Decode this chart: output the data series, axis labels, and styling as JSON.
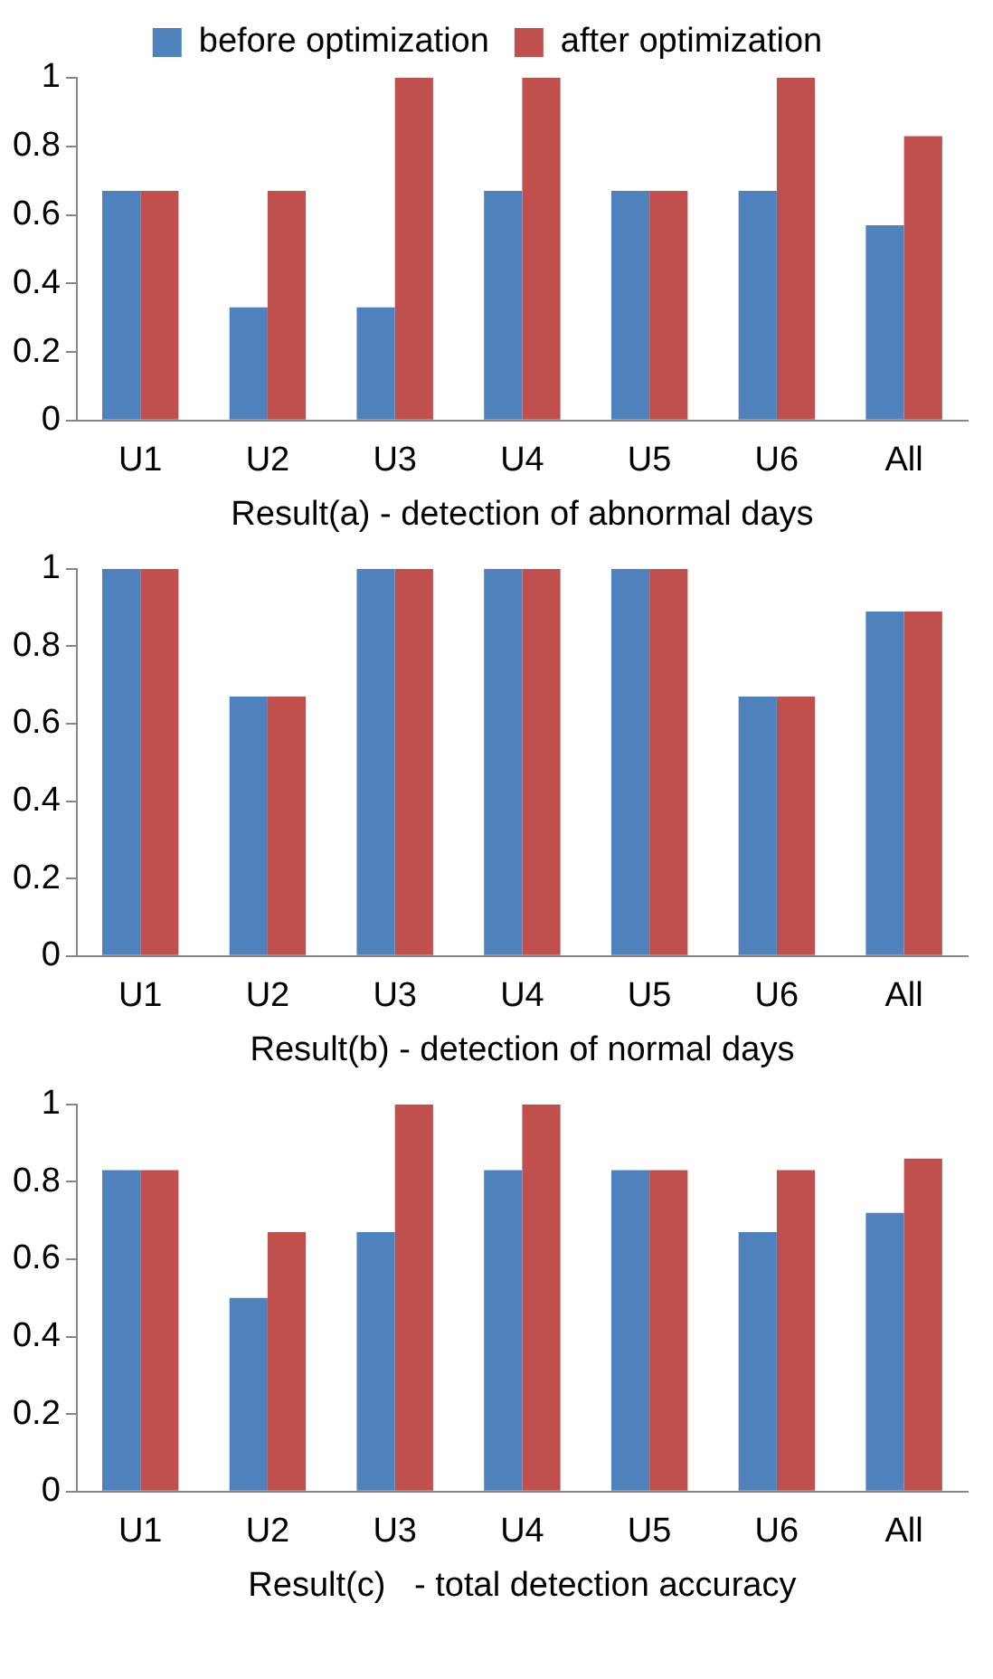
{
  "chart_data": [
    {
      "type": "bar",
      "xlabel": "Result(a) - detection of abnormal days",
      "categories": [
        "U1",
        "U2",
        "U3",
        "U4",
        "U5",
        "U6",
        "All"
      ],
      "series": [
        {
          "name": "before optimization",
          "color": "#4f81bd",
          "values": [
            0.67,
            0.33,
            0.33,
            0.67,
            0.67,
            0.67,
            0.57
          ]
        },
        {
          "name": "after optimization",
          "color": "#c0504d",
          "values": [
            0.67,
            0.67,
            1,
            1,
            0.67,
            1,
            0.83
          ]
        }
      ],
      "ylim": [
        0,
        1
      ],
      "yticks": [
        0,
        0.2,
        0.4,
        0.6,
        0.8,
        1
      ],
      "grid": false,
      "legend": "top"
    },
    {
      "type": "bar",
      "xlabel": "Result(b) - detection of normal days",
      "categories": [
        "U1",
        "U2",
        "U3",
        "U4",
        "U5",
        "U6",
        "All"
      ],
      "series": [
        {
          "color": "#4f81bd",
          "values": [
            1,
            0.67,
            1,
            1,
            1,
            0.67,
            0.89
          ]
        },
        {
          "color": "#c0504d",
          "values": [
            1,
            0.67,
            1,
            1,
            1,
            0.67,
            0.89
          ]
        }
      ],
      "ylim": [
        0,
        1
      ],
      "yticks": [
        0,
        0.2,
        0.4,
        0.6,
        0.8,
        1
      ],
      "grid": false
    },
    {
      "type": "bar",
      "xlabel": "Result(c)   - total detection accuracy",
      "categories": [
        "U1",
        "U2",
        "U3",
        "U4",
        "U5",
        "U6",
        "All"
      ],
      "series": [
        {
          "color": "#4f81bd",
          "values": [
            0.83,
            0.5,
            0.67,
            0.83,
            0.83,
            0.67,
            0.72
          ]
        },
        {
          "color": "#c0504d",
          "values": [
            0.83,
            0.67,
            1,
            1,
            0.83,
            0.83,
            0.86
          ]
        }
      ],
      "ylim": [
        0,
        1
      ],
      "yticks": [
        0,
        0.2,
        0.4,
        0.6,
        0.8,
        1
      ],
      "grid": false
    }
  ]
}
